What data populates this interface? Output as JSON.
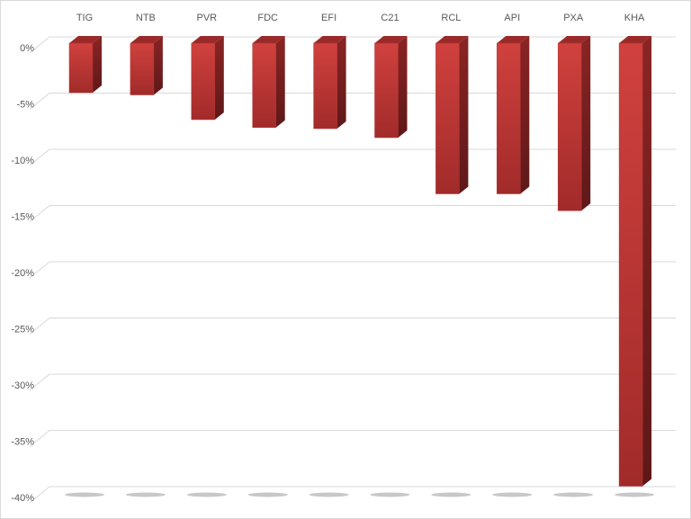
{
  "chart_data": {
    "type": "bar",
    "style": "3d-column",
    "categories": [
      "TIG",
      "NTB",
      "PVR",
      "FDC",
      "EFI",
      "C21",
      "RCL",
      "API",
      "PXA",
      "KHA"
    ],
    "values": [
      -4.4,
      -4.6,
      -6.8,
      -7.5,
      -7.6,
      -8.4,
      -13.4,
      -13.4,
      -14.9,
      -39.4
    ],
    "yticks": [
      "0%",
      "-5%",
      "-10%",
      "-15%",
      "-20%",
      "-25%",
      "-30%",
      "-35%",
      "-40%"
    ],
    "ylim": [
      -40,
      0
    ],
    "y_unit": "%",
    "category_axis_position": "top",
    "grid": true,
    "bar_color": "#c0393a",
    "title": "",
    "xlabel": "",
    "ylabel": ""
  }
}
